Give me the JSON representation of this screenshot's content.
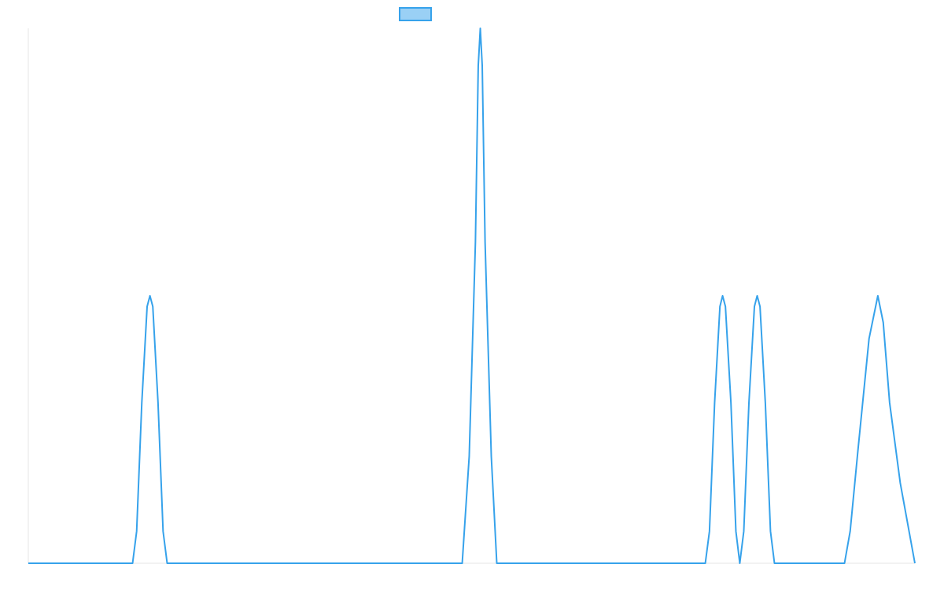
{
  "colors": {
    "series_line": "#36a2eb",
    "legend_fill": "#9ad0f5",
    "axis_line": "#e5e5e5",
    "background": "#ffffff"
  },
  "chart_data": {
    "type": "line",
    "title": "",
    "xlabel": "",
    "ylabel": "",
    "grid": false,
    "legend": {
      "position": "top",
      "entries": [
        {
          "name": "",
          "color": "#36a2eb"
        }
      ]
    },
    "xlim": [
      0,
      1
    ],
    "ylim": [
      0,
      1
    ],
    "series": [
      {
        "values": [
          [
            0.0,
            0.0
          ],
          [
            0.1176,
            0.0
          ],
          [
            0.1222,
            0.06
          ],
          [
            0.128,
            0.3
          ],
          [
            0.134,
            0.48
          ],
          [
            0.1372,
            0.5
          ],
          [
            0.1404,
            0.48
          ],
          [
            0.1463,
            0.3
          ],
          [
            0.152,
            0.06
          ],
          [
            0.1566,
            0.0
          ],
          [
            0.4894,
            0.0
          ],
          [
            0.4973,
            0.2
          ],
          [
            0.5043,
            0.6
          ],
          [
            0.5075,
            0.93
          ],
          [
            0.5098,
            1.0
          ],
          [
            0.512,
            0.93
          ],
          [
            0.5152,
            0.6
          ],
          [
            0.5222,
            0.2
          ],
          [
            0.5284,
            0.0
          ],
          [
            0.7636,
            0.0
          ],
          [
            0.7683,
            0.06
          ],
          [
            0.7741,
            0.3
          ],
          [
            0.7801,
            0.48
          ],
          [
            0.7831,
            0.5
          ],
          [
            0.7863,
            0.48
          ],
          [
            0.7925,
            0.3
          ],
          [
            0.7981,
            0.06
          ],
          [
            0.8025,
            0.0
          ],
          [
            0.807,
            0.06
          ],
          [
            0.8128,
            0.3
          ],
          [
            0.819,
            0.48
          ],
          [
            0.8221,
            0.5
          ],
          [
            0.8253,
            0.48
          ],
          [
            0.8313,
            0.3
          ],
          [
            0.8371,
            0.06
          ],
          [
            0.8416,
            0.0
          ],
          [
            0.9206,
            0.0
          ],
          [
            0.927,
            0.06
          ],
          [
            0.9357,
            0.21
          ],
          [
            0.9483,
            0.42
          ],
          [
            0.9582,
            0.5
          ],
          [
            0.9643,
            0.45
          ],
          [
            0.9715,
            0.3
          ],
          [
            0.9835,
            0.15
          ],
          [
            1.0,
            0.0
          ]
        ]
      }
    ]
  }
}
